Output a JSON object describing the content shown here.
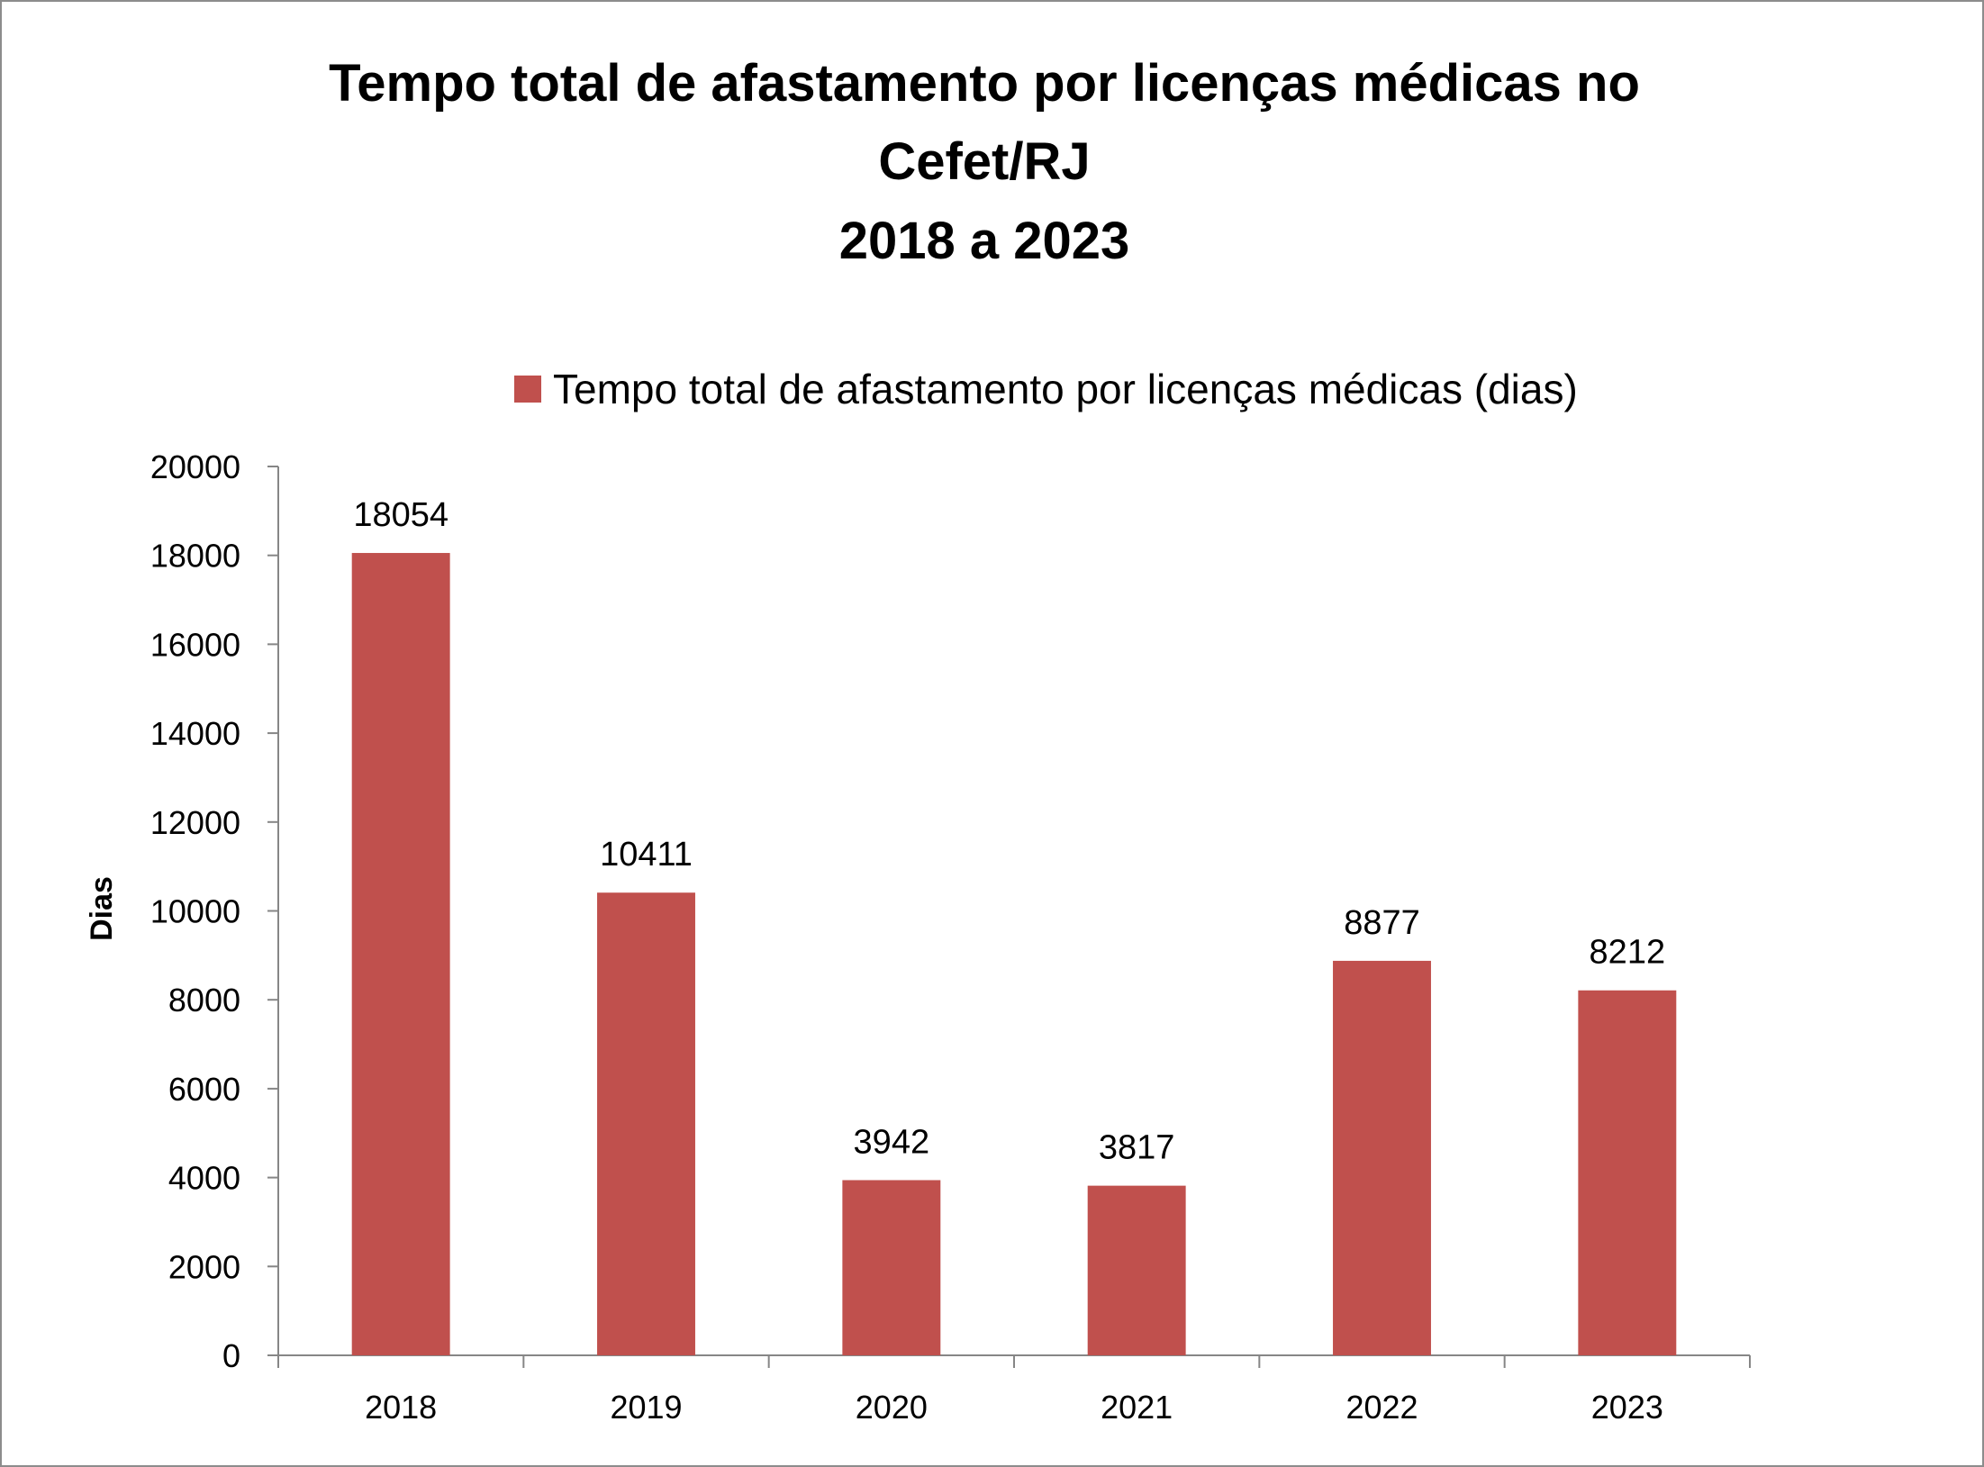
{
  "chart_data": {
    "type": "bar",
    "title_lines": [
      "Tempo total de afastamento por licenças médicas no",
      "Cefet/RJ",
      "2018 a 2023"
    ],
    "xlabel": "",
    "ylabel": "Dias",
    "categories": [
      "2018",
      "2019",
      "2020",
      "2021",
      "2022",
      "2023"
    ],
    "series": [
      {
        "name": "Tempo total de afastamento por licenças médicas (dias)",
        "values": [
          18054,
          10411,
          3942,
          3817,
          8877,
          8212
        ],
        "color": "#c0504d"
      }
    ],
    "ylim": [
      0,
      20000
    ],
    "yticks": [
      "0",
      "2000",
      "4000",
      "6000",
      "8000",
      "10000",
      "12000",
      "14000",
      "16000",
      "18000",
      "20000"
    ],
    "data_labels": [
      "18054",
      "10411",
      "3942",
      "3817",
      "8877",
      "8212"
    ],
    "legend_position": "top",
    "grid": false
  }
}
